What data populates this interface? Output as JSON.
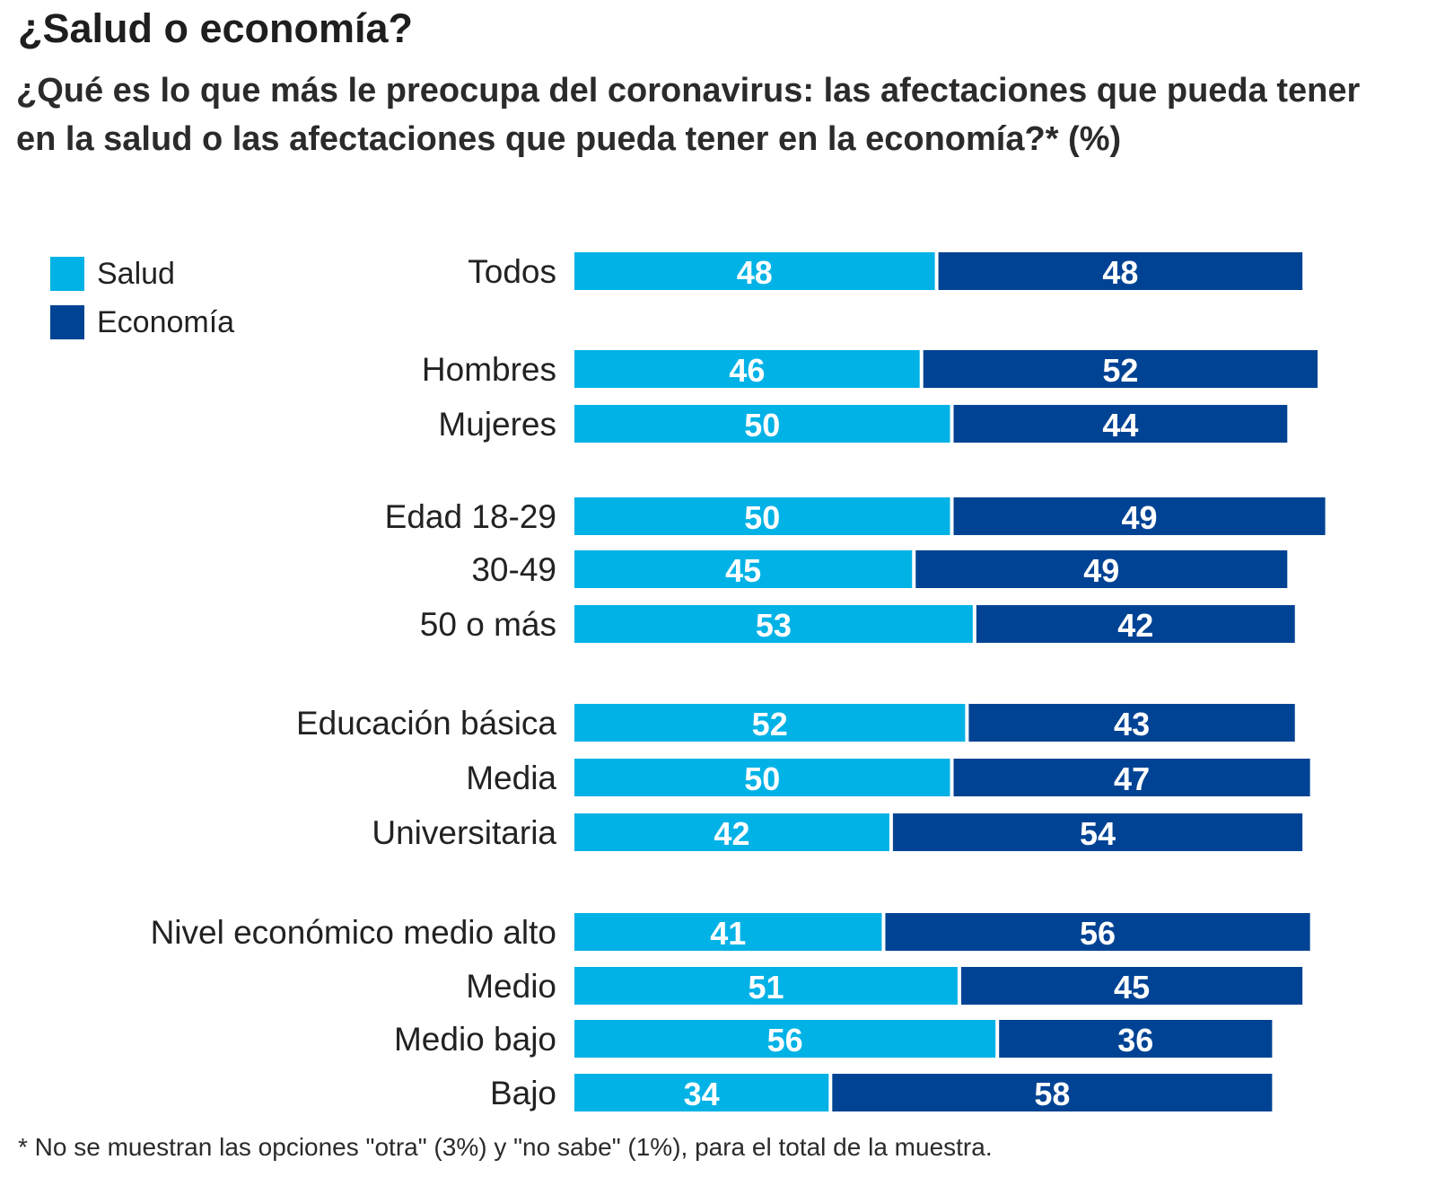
{
  "title": "¿Salud o economía?",
  "subtitle": "¿Qué es lo que más le preocupa del coronavirus: las afectaciones que pueda tener en la salud o las afectaciones que pueda tener en la economía?* (%)",
  "footnote": "* No se muestran las opciones \"otra\" (3%) y \"no sabe\" (1%), para el total de la muestra.",
  "colors": {
    "salud": "#00b2e6",
    "economia": "#004394",
    "bar_label": "#ffffff"
  },
  "chart_data": {
    "type": "bar",
    "orientation": "horizontal",
    "stacked": true,
    "legend_position": "top-left",
    "xlim": [
      0,
      100
    ],
    "grid": false,
    "title": "¿Salud o economía?",
    "subtitle": "¿Qué es lo que más le preocupa del coronavirus: las afectaciones que pueda tener en la salud o las afectaciones que pueda tener en la economía?* (%)",
    "categories": [
      "Todos",
      "Hombres",
      "Mujeres",
      "Edad 18-29",
      "30-49",
      "50 o más",
      "Educación básica",
      "Media",
      "Universitaria",
      "Nivel económico medio alto",
      "Medio",
      "Medio bajo",
      "Bajo"
    ],
    "series": [
      {
        "name": "Salud",
        "color": "#00b2e6",
        "values": [
          48,
          46,
          50,
          50,
          45,
          53,
          52,
          50,
          42,
          41,
          51,
          56,
          34
        ]
      },
      {
        "name": "Economía",
        "color": "#004394",
        "values": [
          48,
          52,
          44,
          49,
          49,
          42,
          43,
          47,
          54,
          56,
          45,
          36,
          58
        ]
      }
    ]
  }
}
